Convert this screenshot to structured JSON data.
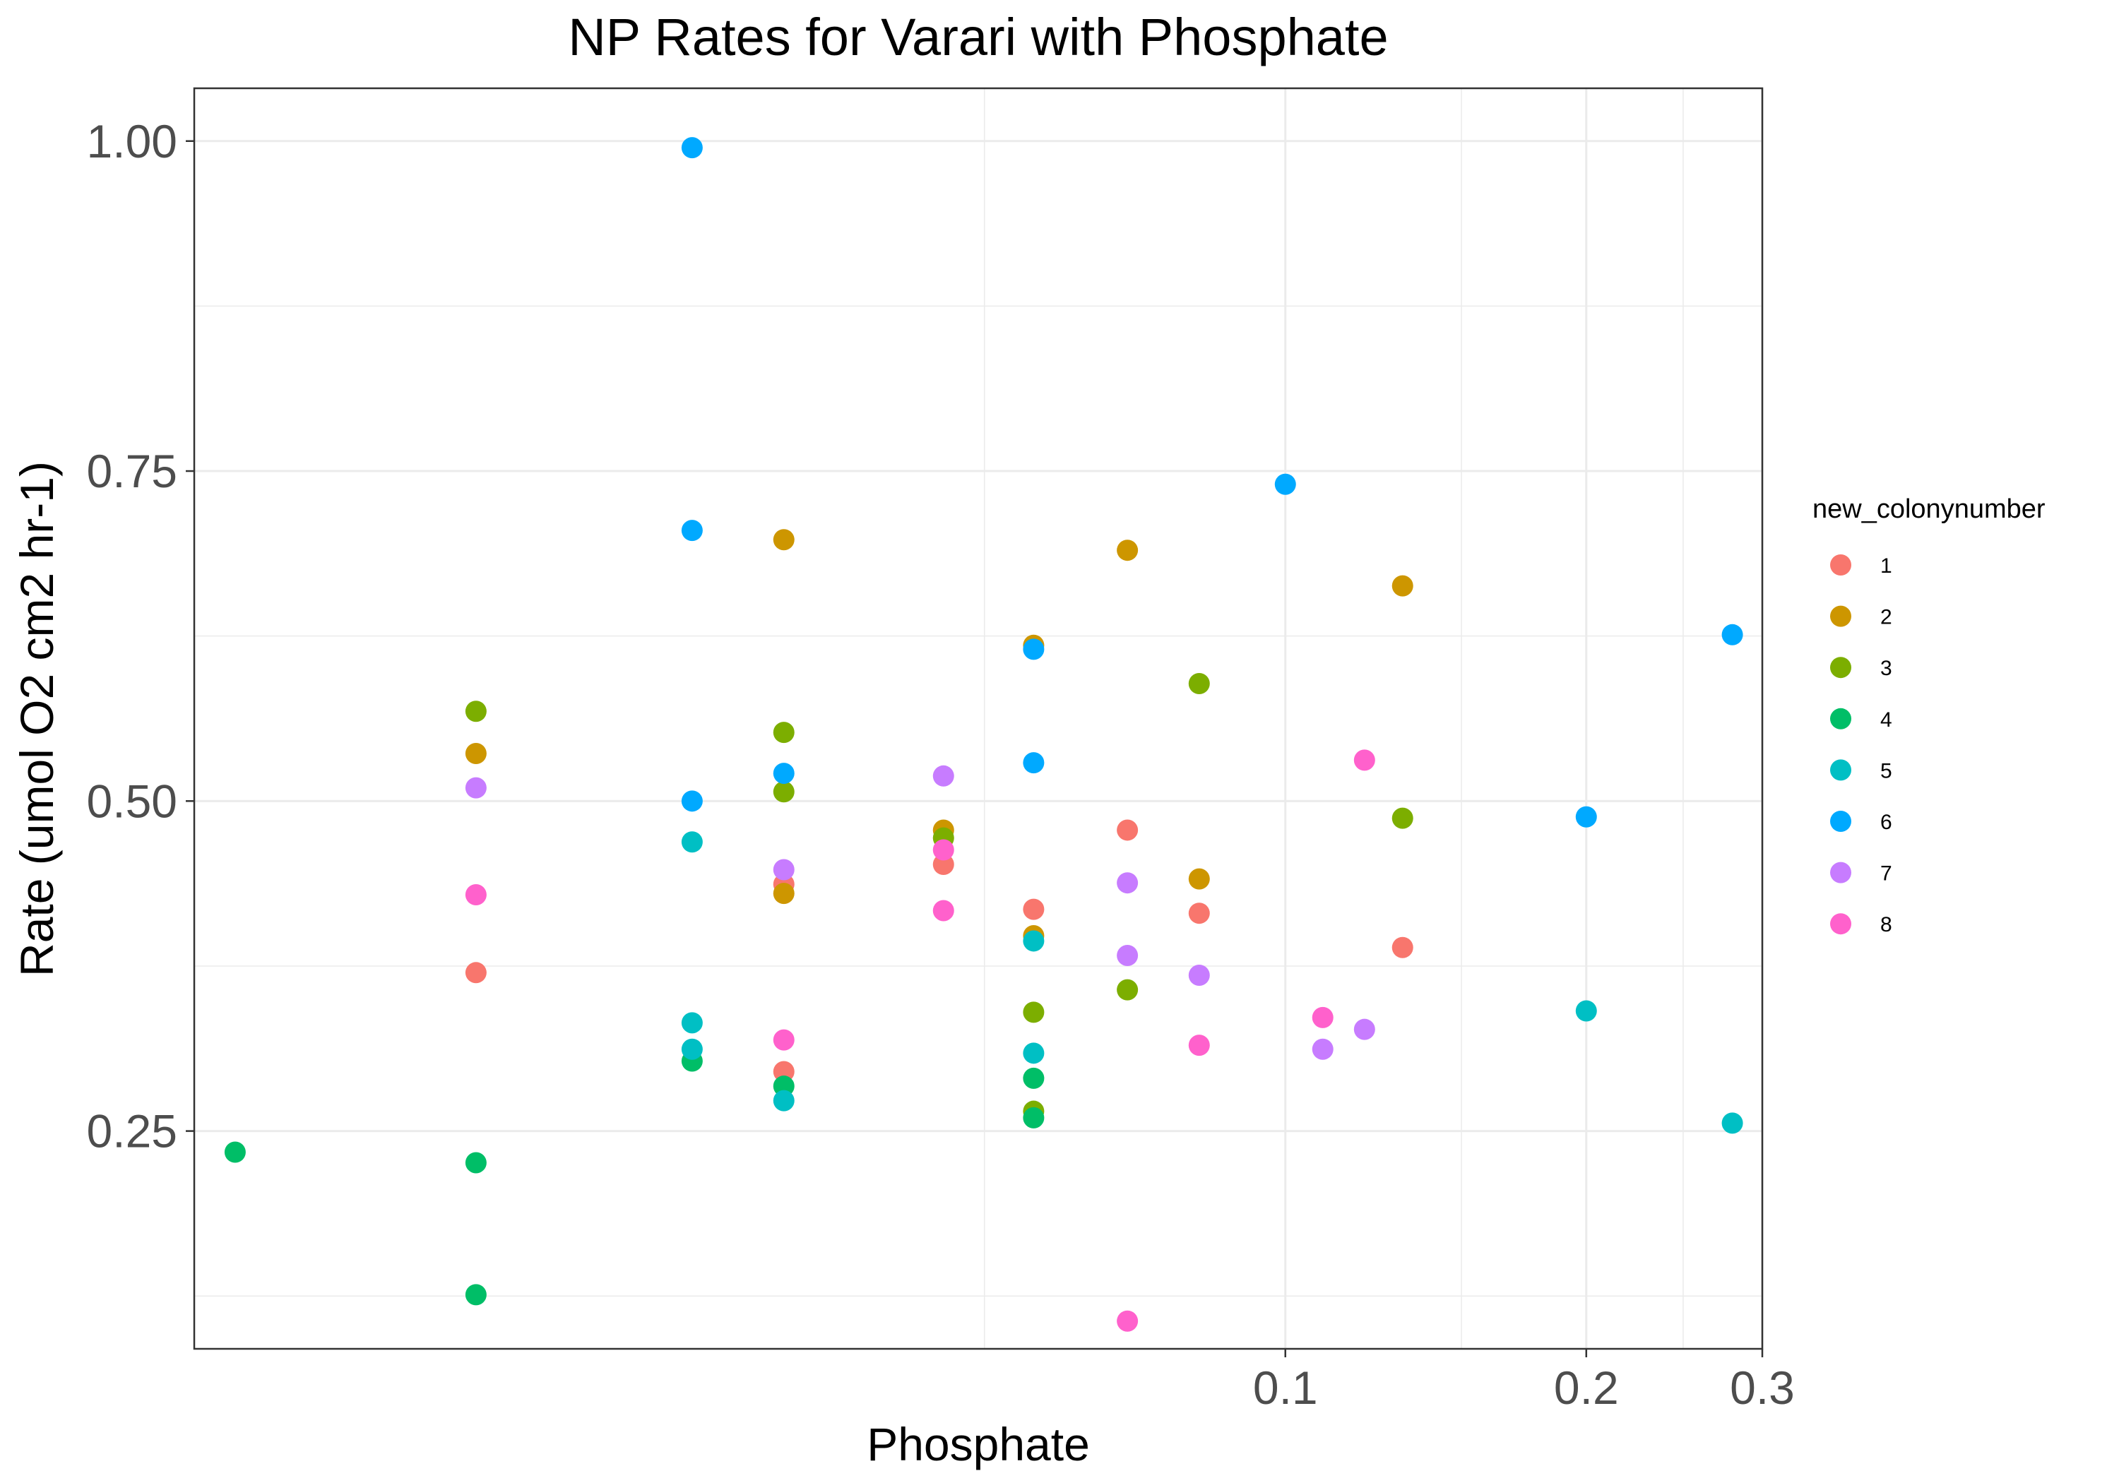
{
  "chart_data": {
    "type": "scatter",
    "title": "NP Rates for Varari with Phosphate",
    "xlabel": "Phosphate",
    "ylabel": "Rate (umol O2 cm2 hr-1)",
    "x_scale": "log10",
    "xlim": [
      0.0081,
      0.3
    ],
    "ylim": [
      0.085,
      1.04
    ],
    "x_ticks": [
      {
        "value": 0.1,
        "label": "0.1"
      },
      {
        "value": 0.2,
        "label": "0.2"
      },
      {
        "value": 0.3,
        "label": "0.3"
      }
    ],
    "x_minor_ticks": [
      0.05,
      0.15,
      0.25
    ],
    "y_ticks": [
      {
        "value": 0.25,
        "label": "0.25"
      },
      {
        "value": 0.5,
        "label": "0.50"
      },
      {
        "value": 0.75,
        "label": "0.75"
      },
      {
        "value": 1.0,
        "label": "1.00"
      }
    ],
    "y_minor_ticks": [
      0.125,
      0.375,
      0.625,
      0.875
    ],
    "grid": true,
    "legend": {
      "title": "new_colonynumber",
      "position": "right"
    },
    "series": [
      {
        "name": "1",
        "color": "#F8766D",
        "points": [
          [
            0.0155,
            0.37
          ],
          [
            0.0315,
            0.295
          ],
          [
            0.0315,
            0.437
          ],
          [
            0.0455,
            0.452
          ],
          [
            0.056,
            0.418
          ],
          [
            0.0695,
            0.478
          ],
          [
            0.082,
            0.415
          ],
          [
            0.131,
            0.389
          ]
        ]
      },
      {
        "name": "2",
        "color": "#CD9600",
        "points": [
          [
            0.0155,
            0.536
          ],
          [
            0.0315,
            0.698
          ],
          [
            0.0315,
            0.43
          ],
          [
            0.0455,
            0.478
          ],
          [
            0.056,
            0.618
          ],
          [
            0.056,
            0.398
          ],
          [
            0.0695,
            0.69
          ],
          [
            0.082,
            0.441
          ],
          [
            0.131,
            0.663
          ]
        ]
      },
      {
        "name": "3",
        "color": "#7CAE00",
        "points": [
          [
            0.0155,
            0.568
          ],
          [
            0.0315,
            0.552
          ],
          [
            0.0315,
            0.507
          ],
          [
            0.0455,
            0.472
          ],
          [
            0.056,
            0.34
          ],
          [
            0.056,
            0.265
          ],
          [
            0.0695,
            0.357
          ],
          [
            0.082,
            0.589
          ],
          [
            0.131,
            0.487
          ]
        ]
      },
      {
        "name": "4",
        "color": "#00BE67",
        "points": [
          [
            0.0089,
            0.234
          ],
          [
            0.0155,
            0.226
          ],
          [
            0.0155,
            0.126
          ],
          [
            0.0255,
            0.303
          ],
          [
            0.0315,
            0.284
          ],
          [
            0.056,
            0.29
          ],
          [
            0.056,
            0.26
          ]
        ]
      },
      {
        "name": "5",
        "color": "#00BFC4",
        "points": [
          [
            0.0255,
            0.469
          ],
          [
            0.0255,
            0.332
          ],
          [
            0.0255,
            0.312
          ],
          [
            0.0315,
            0.273
          ],
          [
            0.056,
            0.394
          ],
          [
            0.056,
            0.309
          ],
          [
            0.2,
            0.341
          ],
          [
            0.28,
            0.256
          ]
        ]
      },
      {
        "name": "6",
        "color": "#00A9FF",
        "points": [
          [
            0.0255,
            0.995
          ],
          [
            0.0255,
            0.705
          ],
          [
            0.0255,
            0.5
          ],
          [
            0.0315,
            0.521
          ],
          [
            0.056,
            0.615
          ],
          [
            0.056,
            0.529
          ],
          [
            0.1,
            0.74
          ],
          [
            0.2,
            0.488
          ],
          [
            0.28,
            0.626
          ]
        ]
      },
      {
        "name": "7",
        "color": "#C77CFF",
        "points": [
          [
            0.0155,
            0.51
          ],
          [
            0.0315,
            0.448
          ],
          [
            0.0455,
            0.519
          ],
          [
            0.0695,
            0.438
          ],
          [
            0.0695,
            0.383
          ],
          [
            0.082,
            0.368
          ],
          [
            0.109,
            0.312
          ],
          [
            0.12,
            0.327
          ]
        ]
      },
      {
        "name": "8",
        "color": "#FF61CC",
        "points": [
          [
            0.0155,
            0.429
          ],
          [
            0.0315,
            0.319
          ],
          [
            0.0455,
            0.463
          ],
          [
            0.0455,
            0.417
          ],
          [
            0.0695,
            0.106
          ],
          [
            0.082,
            0.315
          ],
          [
            0.109,
            0.336
          ],
          [
            0.12,
            0.531
          ]
        ]
      }
    ]
  }
}
